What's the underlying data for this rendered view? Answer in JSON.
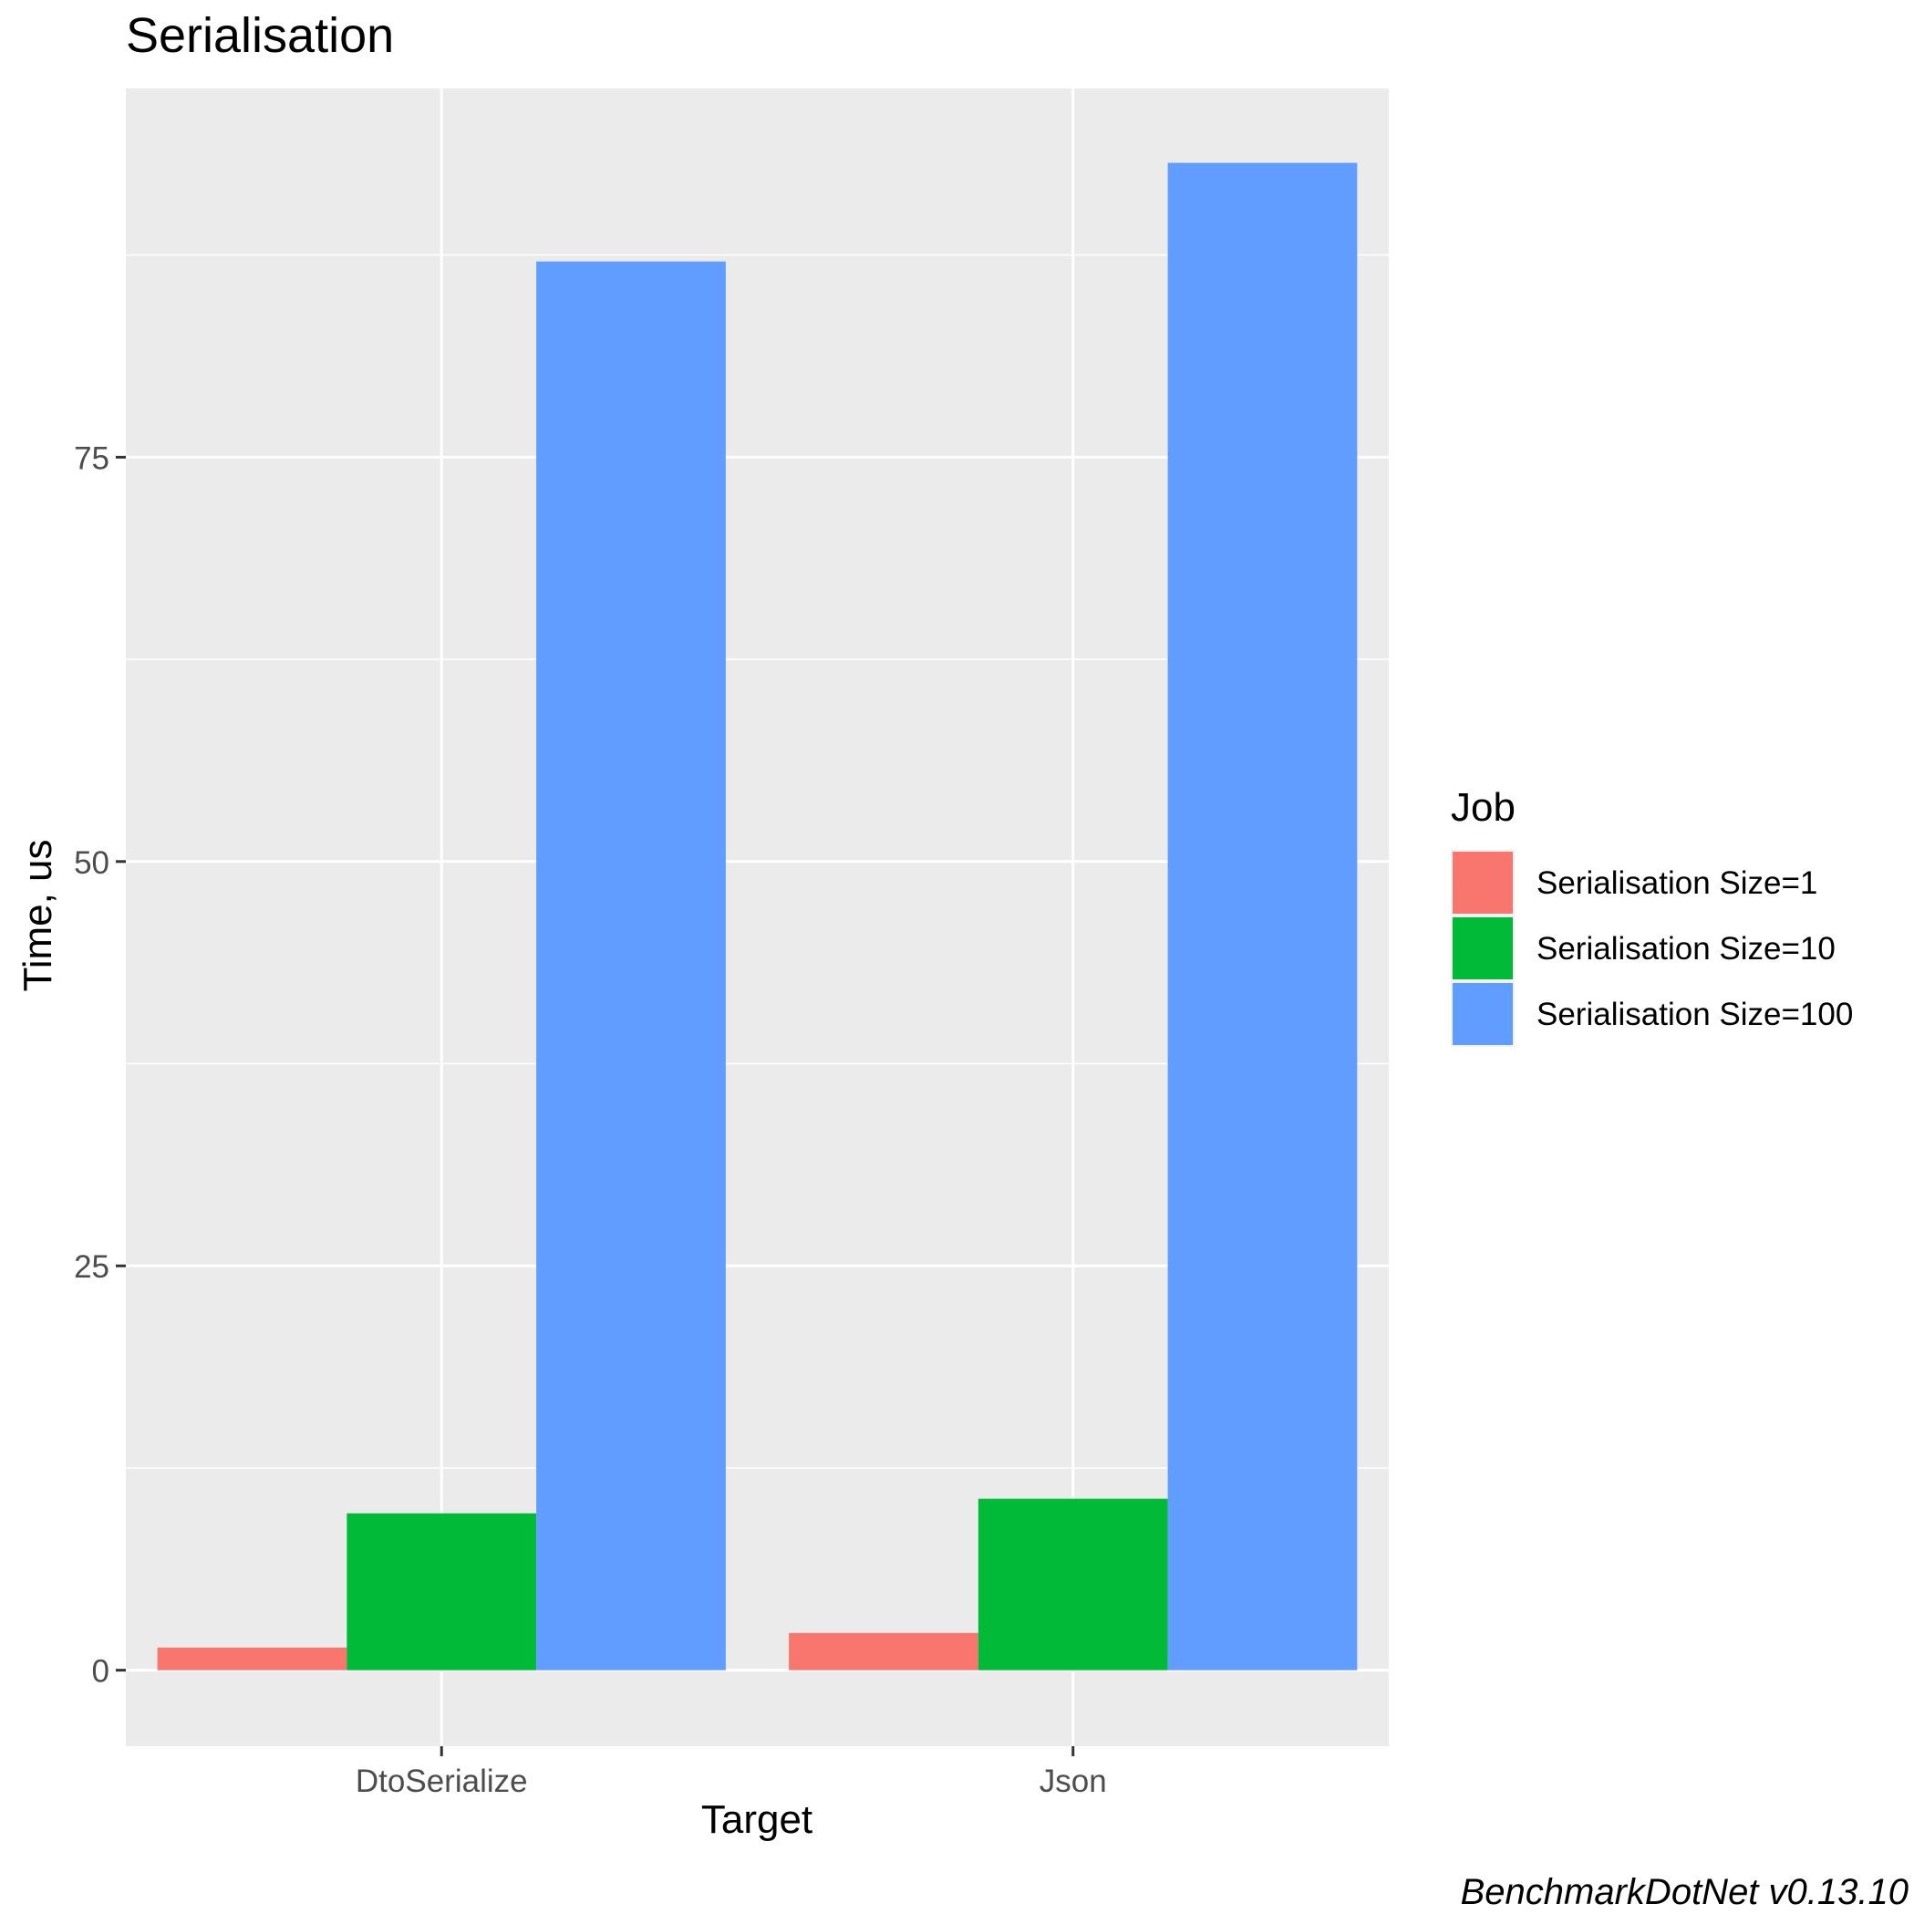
{
  "chart_data": {
    "type": "bar",
    "title": "Serialisation",
    "xlabel": "Target",
    "ylabel": "Time, us",
    "categories": [
      "DtoSerialize",
      "Json"
    ],
    "series": [
      {
        "name": "Serialisation Size=1",
        "values": [
          1.4,
          2.3
        ],
        "color": "#f8766d"
      },
      {
        "name": "Serialisation Size=10",
        "values": [
          9.7,
          10.6
        ],
        "color": "#00ba38"
      },
      {
        "name": "Serialisation Size=100",
        "values": [
          87.1,
          93.2
        ],
        "color": "#619cff"
      }
    ],
    "ylim": [
      -4.7,
      97.8
    ],
    "yticks": [
      0,
      25,
      50,
      75
    ],
    "grid": true,
    "legend": {
      "title": "Job",
      "position": "right"
    },
    "caption": "BenchmarkDotNet v0.13.10",
    "colors": {
      "panel": "#ebebeb",
      "grid": "#ffffff"
    }
  }
}
